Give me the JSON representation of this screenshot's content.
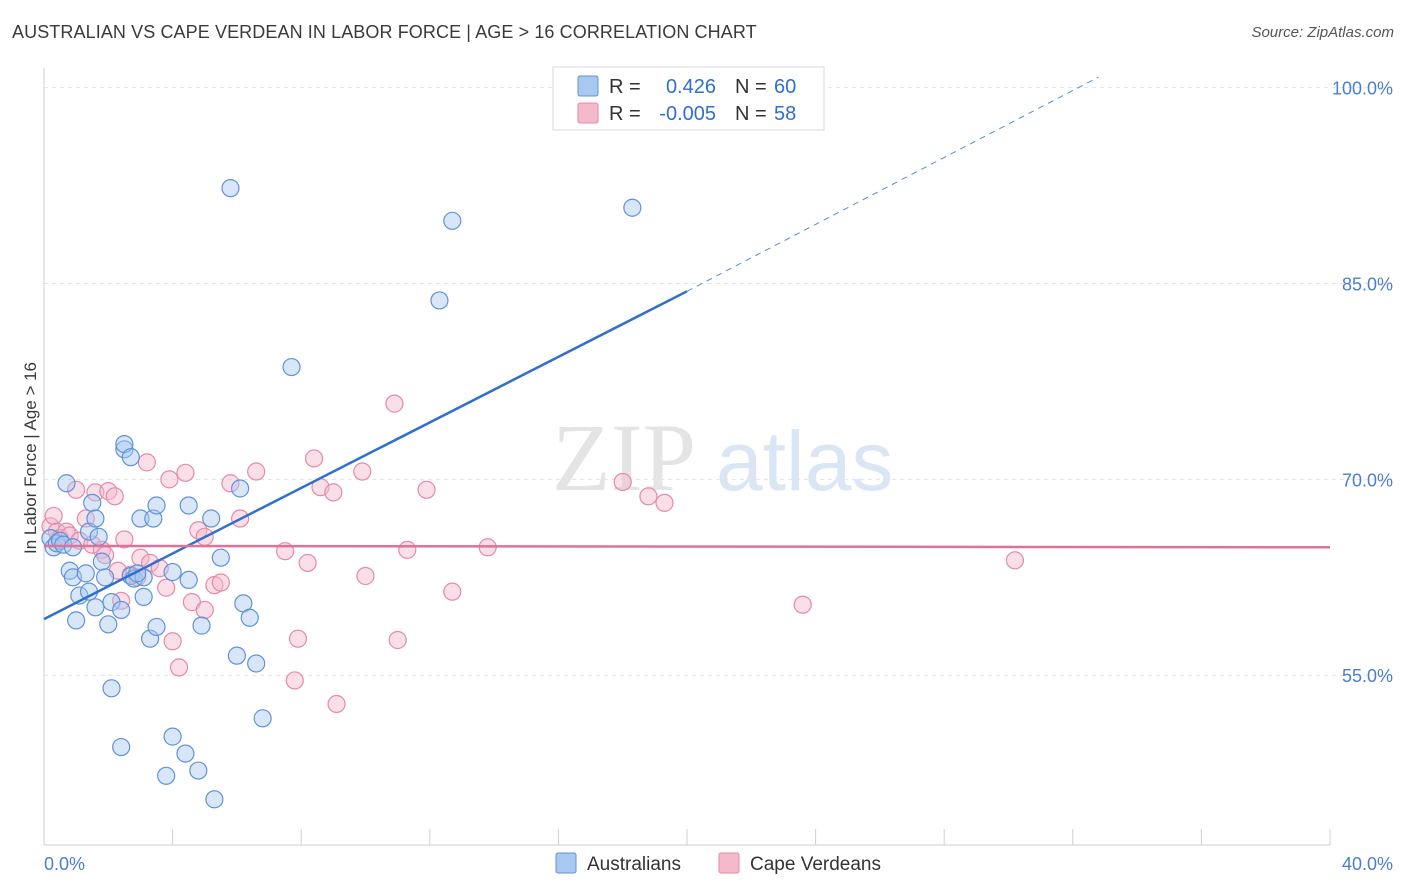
{
  "title": "AUSTRALIAN VS CAPE VERDEAN IN LABOR FORCE | AGE > 16 CORRELATION CHART",
  "source": "Source: ZipAtlas.com",
  "watermark": {
    "zip": "ZIP",
    "atlas": "atlas"
  },
  "colors": {
    "blue_fill": "#a9c8ef",
    "blue_stroke": "#5f93d8",
    "blue_line": "#2f6fd0",
    "pink_fill": "#f5b9cc",
    "pink_stroke": "#e58aa8",
    "pink_line": "#e0729a",
    "grid": "#e3e3e3",
    "tick_text": "#4a7fd0"
  },
  "legend": {
    "row1": {
      "r_label": "R =",
      "r_value": "0.426",
      "n_label": "N =",
      "n_value": "60"
    },
    "row2": {
      "r_label": "R =",
      "r_value": "-0.005",
      "n_label": "N =",
      "n_value": "58"
    }
  },
  "bottom_legend": {
    "series1": "Australians",
    "series2": "Cape Verdeans"
  },
  "chart_data": {
    "type": "scatter",
    "title": "AUSTRALIAN VS CAPE VERDEAN IN LABOR FORCE | AGE > 16 CORRELATION CHART",
    "xlabel": "",
    "ylabel": "In Labor Force | Age > 16",
    "xlim": [
      0,
      40
    ],
    "ylim": [
      42,
      101.5
    ],
    "x_tick_labels": [
      "0.0%",
      "40.0%"
    ],
    "y_ticks": [
      55,
      70,
      85,
      100
    ],
    "y_tick_labels": [
      "55.0%",
      "70.0%",
      "85.0%",
      "100.0%"
    ],
    "grid": true,
    "legend_position": "top-center",
    "series": [
      {
        "name": "Australians",
        "r": 0.426,
        "n": 60,
        "trend": {
          "x": [
            0,
            20
          ],
          "y": [
            59.3,
            84.4
          ],
          "extended_to": [
            32.8,
            100.8
          ]
        },
        "points": [
          [
            0.2,
            65.5
          ],
          [
            0.3,
            64.8
          ],
          [
            0.4,
            65.1
          ],
          [
            0.5,
            65.3
          ],
          [
            0.6,
            65.0
          ],
          [
            0.7,
            69.7
          ],
          [
            0.8,
            63.0
          ],
          [
            0.9,
            62.5
          ],
          [
            1.0,
            59.2
          ],
          [
            1.1,
            61.1
          ],
          [
            1.3,
            62.8
          ],
          [
            1.4,
            61.4
          ],
          [
            1.4,
            66.0
          ],
          [
            1.5,
            68.2
          ],
          [
            1.6,
            60.2
          ],
          [
            1.6,
            67.0
          ],
          [
            1.7,
            65.6
          ],
          [
            1.8,
            63.7
          ],
          [
            1.9,
            62.5
          ],
          [
            2.0,
            58.9
          ],
          [
            2.1,
            60.6
          ],
          [
            2.1,
            54.0
          ],
          [
            2.4,
            60.0
          ],
          [
            2.4,
            49.5
          ],
          [
            2.5,
            72.3
          ],
          [
            2.5,
            72.7
          ],
          [
            2.7,
            71.7
          ],
          [
            2.7,
            62.6
          ],
          [
            2.8,
            62.4
          ],
          [
            3.0,
            67.0
          ],
          [
            3.1,
            61.0
          ],
          [
            3.1,
            62.5
          ],
          [
            3.3,
            57.8
          ],
          [
            3.4,
            67.0
          ],
          [
            3.5,
            68.0
          ],
          [
            3.5,
            58.7
          ],
          [
            3.8,
            47.3
          ],
          [
            4.0,
            62.9
          ],
          [
            4.0,
            50.3
          ],
          [
            4.4,
            49.0
          ],
          [
            4.5,
            68.0
          ],
          [
            4.5,
            62.3
          ],
          [
            4.8,
            47.7
          ],
          [
            4.9,
            58.8
          ],
          [
            5.2,
            67.0
          ],
          [
            5.3,
            45.5
          ],
          [
            5.5,
            64.0
          ],
          [
            5.8,
            92.3
          ],
          [
            6.0,
            56.5
          ],
          [
            6.1,
            69.3
          ],
          [
            6.2,
            60.5
          ],
          [
            6.4,
            59.4
          ],
          [
            6.6,
            55.9
          ],
          [
            6.8,
            51.7
          ],
          [
            7.7,
            78.6
          ],
          [
            12.3,
            83.7
          ],
          [
            12.7,
            89.8
          ],
          [
            18.3,
            90.8
          ],
          [
            0.9,
            64.8
          ],
          [
            2.9,
            62.8
          ]
        ]
      },
      {
        "name": "Cape Verdeans",
        "r": -0.005,
        "n": 58,
        "trend": {
          "x": [
            0,
            40
          ],
          "y": [
            64.9,
            64.8
          ]
        },
        "points": [
          [
            0.2,
            66.4
          ],
          [
            0.3,
            67.2
          ],
          [
            0.4,
            66.0
          ],
          [
            0.5,
            65.5
          ],
          [
            0.7,
            66.0
          ],
          [
            0.8,
            65.7
          ],
          [
            1.0,
            69.2
          ],
          [
            1.1,
            65.3
          ],
          [
            1.3,
            67.0
          ],
          [
            1.5,
            65.0
          ],
          [
            1.6,
            69.0
          ],
          [
            1.8,
            64.6
          ],
          [
            1.9,
            64.2
          ],
          [
            2.0,
            69.1
          ],
          [
            2.2,
            68.7
          ],
          [
            2.3,
            63.0
          ],
          [
            2.4,
            60.7
          ],
          [
            2.5,
            65.4
          ],
          [
            2.7,
            62.7
          ],
          [
            2.9,
            62.5
          ],
          [
            3.0,
            64.0
          ],
          [
            3.2,
            71.3
          ],
          [
            3.3,
            63.6
          ],
          [
            3.6,
            63.2
          ],
          [
            3.8,
            61.7
          ],
          [
            3.9,
            70.0
          ],
          [
            4.0,
            57.6
          ],
          [
            4.2,
            55.6
          ],
          [
            4.4,
            70.5
          ],
          [
            4.6,
            60.6
          ],
          [
            4.8,
            66.1
          ],
          [
            5.0,
            65.6
          ],
          [
            5.0,
            60.0
          ],
          [
            5.3,
            61.9
          ],
          [
            5.5,
            62.1
          ],
          [
            5.8,
            69.7
          ],
          [
            6.1,
            67.0
          ],
          [
            6.6,
            70.6
          ],
          [
            7.5,
            64.5
          ],
          [
            7.8,
            54.6
          ],
          [
            7.9,
            57.8
          ],
          [
            8.2,
            63.6
          ],
          [
            8.4,
            71.6
          ],
          [
            8.6,
            69.4
          ],
          [
            9.0,
            69.0
          ],
          [
            9.1,
            52.8
          ],
          [
            9.9,
            70.6
          ],
          [
            10.0,
            62.6
          ],
          [
            10.9,
            75.8
          ],
          [
            11.0,
            57.7
          ],
          [
            11.3,
            64.6
          ],
          [
            11.9,
            69.2
          ],
          [
            12.7,
            61.4
          ],
          [
            13.8,
            64.8
          ],
          [
            18.0,
            69.8
          ],
          [
            18.8,
            68.7
          ],
          [
            19.3,
            68.2
          ],
          [
            23.6,
            60.4
          ]
        ]
      },
      {
        "name": "Cape Verdeans (outlier)",
        "points": [
          [
            30.2,
            63.8
          ]
        ]
      }
    ]
  }
}
